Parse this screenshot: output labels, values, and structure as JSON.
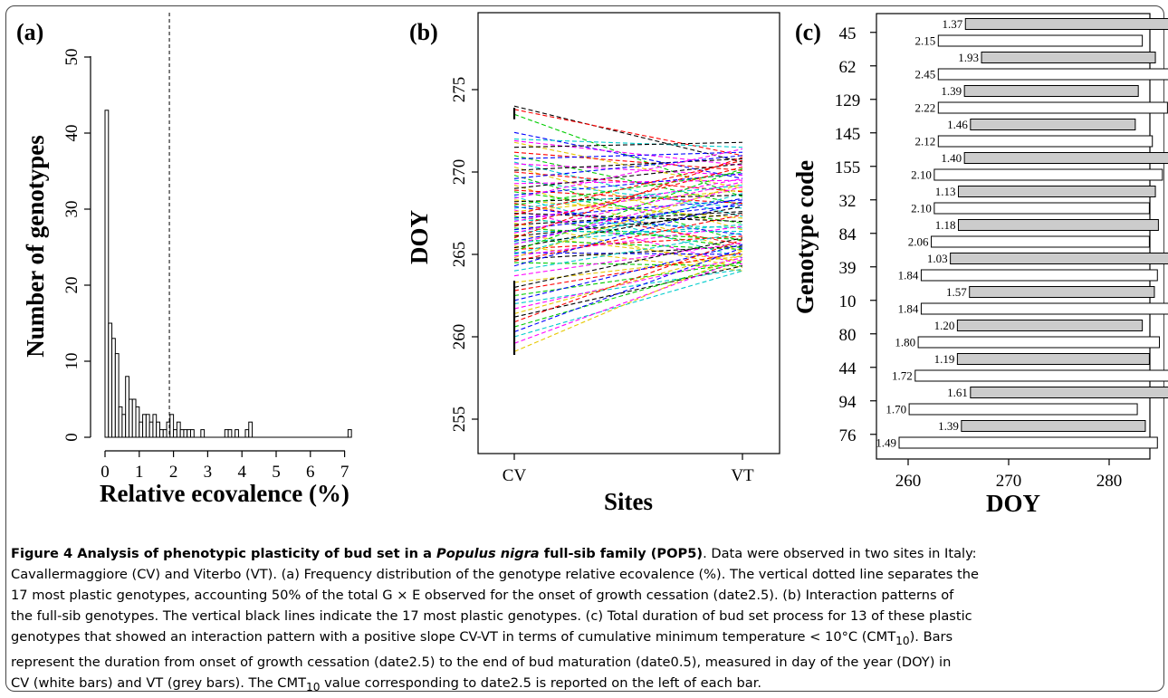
{
  "chart_data": [
    {
      "type": "bar",
      "panel": "(a)",
      "xlabel": "Relative ecovalence (%)",
      "ylabel": "Number of genotypes",
      "xlim": [
        -0.2,
        7.3
      ],
      "ylim": [
        0,
        50
      ],
      "xticks": [
        "0",
        "1",
        "2",
        "3",
        "4",
        "5",
        "6",
        "7"
      ],
      "yticks": [
        "0",
        "10",
        "20",
        "30",
        "40",
        "50"
      ],
      "bin_width": 0.1,
      "bins": [
        {
          "x": 0.0,
          "count": 43
        },
        {
          "x": 0.1,
          "count": 15
        },
        {
          "x": 0.2,
          "count": 13
        },
        {
          "x": 0.3,
          "count": 11
        },
        {
          "x": 0.4,
          "count": 4
        },
        {
          "x": 0.5,
          "count": 3
        },
        {
          "x": 0.6,
          "count": 8
        },
        {
          "x": 0.7,
          "count": 5
        },
        {
          "x": 0.8,
          "count": 5
        },
        {
          "x": 0.9,
          "count": 4
        },
        {
          "x": 1.0,
          "count": 2
        },
        {
          "x": 1.1,
          "count": 3
        },
        {
          "x": 1.2,
          "count": 3
        },
        {
          "x": 1.3,
          "count": 2
        },
        {
          "x": 1.4,
          "count": 3
        },
        {
          "x": 1.5,
          "count": 2
        },
        {
          "x": 1.6,
          "count": 1
        },
        {
          "x": 1.7,
          "count": 1
        },
        {
          "x": 1.8,
          "count": 2
        },
        {
          "x": 1.9,
          "count": 3
        },
        {
          "x": 2.0,
          "count": 1
        },
        {
          "x": 2.1,
          "count": 2
        },
        {
          "x": 2.2,
          "count": 1
        },
        {
          "x": 2.3,
          "count": 1
        },
        {
          "x": 2.4,
          "count": 1
        },
        {
          "x": 2.5,
          "count": 1
        },
        {
          "x": 2.8,
          "count": 1
        },
        {
          "x": 3.5,
          "count": 1
        },
        {
          "x": 3.6,
          "count": 1
        },
        {
          "x": 3.8,
          "count": 1
        },
        {
          "x": 4.1,
          "count": 1
        },
        {
          "x": 4.2,
          "count": 2
        },
        {
          "x": 7.1,
          "count": 1
        }
      ],
      "reference_line_x": 1.88
    },
    {
      "type": "line",
      "panel": "(b)",
      "xlabel": "Sites",
      "ylabel": "DOY",
      "categories": [
        "CV",
        "VT"
      ],
      "ylim": [
        254.5,
        275.5
      ],
      "yticks": [
        255,
        260,
        265,
        270,
        275
      ],
      "line_style": "dashed",
      "series_colors": [
        "#000000",
        "#ff0000",
        "#00cc00",
        "#0000ff",
        "#00cccc",
        "#ff00ff",
        "#e6c800"
      ],
      "series": [
        {
          "values": [
            274.0,
            270.6
          ]
        },
        {
          "values": [
            273.8,
            271.0
          ]
        },
        {
          "values": [
            273.5,
            268.5
          ]
        },
        {
          "values": [
            272.4,
            269.6
          ]
        },
        {
          "values": [
            272.0,
            271.5
          ]
        },
        {
          "values": [
            271.9,
            270.4
          ]
        },
        {
          "values": [
            271.8,
            269.0
          ]
        },
        {
          "values": [
            271.5,
            271.8
          ]
        },
        {
          "values": [
            271.2,
            270.1
          ]
        },
        {
          "values": [
            271.0,
            268.0
          ]
        },
        {
          "values": [
            270.8,
            271.2
          ]
        },
        {
          "values": [
            270.6,
            267.3
          ]
        },
        {
          "values": [
            270.5,
            269.8
          ]
        },
        {
          "values": [
            270.3,
            266.5
          ]
        },
        {
          "values": [
            270.1,
            270.8
          ]
        },
        {
          "values": [
            270.0,
            268.8
          ]
        },
        {
          "values": [
            269.8,
            265.8
          ]
        },
        {
          "values": [
            269.6,
            271.0
          ]
        },
        {
          "values": [
            269.5,
            267.8
          ]
        },
        {
          "values": [
            269.3,
            269.5
          ]
        },
        {
          "values": [
            269.2,
            265.2
          ]
        },
        {
          "values": [
            269.0,
            270.5
          ]
        },
        {
          "values": [
            268.9,
            268.1
          ]
        },
        {
          "values": [
            268.8,
            266.9
          ]
        },
        {
          "values": [
            268.6,
            269.9
          ]
        },
        {
          "values": [
            268.5,
            264.8
          ]
        },
        {
          "values": [
            268.4,
            271.4
          ]
        },
        {
          "values": [
            268.3,
            267.2
          ]
        },
        {
          "values": [
            268.2,
            268.6
          ]
        },
        {
          "values": [
            268.1,
            265.6
          ]
        },
        {
          "values": [
            268.0,
            270.0
          ]
        },
        {
          "values": [
            267.9,
            266.2
          ]
        },
        {
          "values": [
            267.8,
            269.2
          ]
        },
        {
          "values": [
            267.7,
            264.4
          ]
        },
        {
          "values": [
            267.6,
            268.9
          ]
        },
        {
          "values": [
            267.5,
            267.0
          ]
        },
        {
          "values": [
            267.4,
            270.7
          ]
        },
        {
          "values": [
            267.3,
            265.4
          ]
        },
        {
          "values": [
            267.2,
            268.3
          ]
        },
        {
          "values": [
            267.1,
            266.6
          ]
        },
        {
          "values": [
            267.0,
            269.6
          ]
        },
        {
          "values": [
            266.9,
            264.2
          ]
        },
        {
          "values": [
            266.8,
            267.6
          ]
        },
        {
          "values": [
            266.7,
            270.3
          ]
        },
        {
          "values": [
            266.6,
            265.9
          ]
        },
        {
          "values": [
            266.5,
            268.0
          ]
        },
        {
          "values": [
            266.4,
            266.4
          ]
        },
        {
          "values": [
            266.3,
            269.4
          ]
        },
        {
          "values": [
            266.2,
            264.6
          ]
        },
        {
          "values": [
            266.1,
            267.5
          ]
        },
        {
          "values": [
            266.0,
            270.9
          ]
        },
        {
          "values": [
            265.9,
            265.3
          ]
        },
        {
          "values": [
            265.8,
            268.4
          ]
        },
        {
          "values": [
            265.7,
            266.8
          ]
        },
        {
          "values": [
            265.6,
            269.1
          ]
        },
        {
          "values": [
            265.5,
            264.0
          ]
        },
        {
          "values": [
            265.4,
            267.9
          ]
        },
        {
          "values": [
            265.3,
            266.1
          ]
        },
        {
          "values": [
            265.2,
            270.2
          ]
        },
        {
          "values": [
            265.1,
            265.0
          ]
        },
        {
          "values": [
            265.0,
            268.7
          ]
        },
        {
          "values": [
            264.9,
            266.7
          ]
        },
        {
          "values": [
            264.8,
            269.3
          ]
        },
        {
          "values": [
            264.7,
            265.5
          ]
        },
        {
          "values": [
            264.6,
            267.4
          ]
        },
        {
          "values": [
            264.5,
            264.3
          ]
        },
        {
          "values": [
            264.3,
            268.2
          ]
        },
        {
          "values": [
            264.0,
            266.3
          ]
        },
        {
          "values": [
            263.7,
            265.7
          ]
        },
        {
          "values": [
            263.3,
            264.9
          ]
        },
        {
          "values": [
            263.0,
            266.0
          ]
        },
        {
          "values": [
            262.8,
            265.1
          ]
        },
        {
          "values": [
            262.5,
            264.5
          ]
        },
        {
          "values": [
            262.2,
            265.6
          ]
        },
        {
          "values": [
            262.0,
            264.1
          ]
        },
        {
          "values": [
            261.7,
            264.8
          ]
        },
        {
          "values": [
            261.4,
            265.2
          ]
        },
        {
          "values": [
            261.2,
            264.3
          ]
        },
        {
          "values": [
            260.9,
            265.9
          ]
        },
        {
          "values": [
            260.6,
            264.6
          ]
        },
        {
          "values": [
            260.3,
            265.4
          ]
        },
        {
          "values": [
            260.0,
            264.0
          ]
        },
        {
          "values": [
            259.6,
            264.7
          ]
        },
        {
          "values": [
            259.1,
            265.0
          ]
        }
      ],
      "plastic_markers": [
        [
          273.2,
          273.9
        ],
        [
          258.9,
          263.4
        ]
      ]
    },
    {
      "type": "bar",
      "panel": "(c)",
      "xlabel": "DOY",
      "ylabel": "Genotype code",
      "xlim": [
        257,
        290
      ],
      "xticks": [
        "260",
        "270",
        "280"
      ],
      "genotypes": [
        "45",
        "62",
        "129",
        "145",
        "155",
        "32",
        "84",
        "39",
        "10",
        "80",
        "44",
        "94",
        "76"
      ],
      "bars": [
        {
          "site": "VT",
          "start": 265.7,
          "end": 286.6,
          "cmt10": "1.37"
        },
        {
          "site": "CV",
          "start": 263.0,
          "end": 283.3,
          "cmt10": "2.15"
        },
        {
          "site": "VT",
          "start": 267.3,
          "end": 284.6,
          "cmt10": "1.93"
        },
        {
          "site": "CV",
          "start": 263.0,
          "end": 286.9,
          "cmt10": "2.45"
        },
        {
          "site": "VT",
          "start": 265.6,
          "end": 282.9,
          "cmt10": "1.39"
        },
        {
          "site": "CV",
          "start": 263.0,
          "end": 285.8,
          "cmt10": "2.22"
        },
        {
          "site": "VT",
          "start": 266.2,
          "end": 282.6,
          "cmt10": "1.46"
        },
        {
          "site": "CV",
          "start": 263.0,
          "end": 284.3,
          "cmt10": "2.12"
        },
        {
          "site": "VT",
          "start": 265.6,
          "end": 287.6,
          "cmt10": "1.40"
        },
        {
          "site": "CV",
          "start": 262.6,
          "end": 285.3,
          "cmt10": "2.10"
        },
        {
          "site": "VT",
          "start": 265.0,
          "end": 284.6,
          "cmt10": "1.13"
        },
        {
          "site": "CV",
          "start": 262.6,
          "end": 284.0,
          "cmt10": "2.10"
        },
        {
          "site": "VT",
          "start": 265.0,
          "end": 284.9,
          "cmt10": "1.18"
        },
        {
          "site": "CV",
          "start": 262.3,
          "end": 284.0,
          "cmt10": "2.06"
        },
        {
          "site": "VT",
          "start": 264.2,
          "end": 286.9,
          "cmt10": "1.03"
        },
        {
          "site": "CV",
          "start": 261.3,
          "end": 284.8,
          "cmt10": "1.84"
        },
        {
          "site": "VT",
          "start": 266.1,
          "end": 284.5,
          "cmt10": "1.57"
        },
        {
          "site": "CV",
          "start": 261.3,
          "end": 285.9,
          "cmt10": "1.84"
        },
        {
          "site": "VT",
          "start": 264.9,
          "end": 283.3,
          "cmt10": "1.20"
        },
        {
          "site": "CV",
          "start": 261.0,
          "end": 285.0,
          "cmt10": "1.80"
        },
        {
          "site": "VT",
          "start": 264.9,
          "end": 284.0,
          "cmt10": "1.19"
        },
        {
          "site": "CV",
          "start": 260.7,
          "end": 286.1,
          "cmt10": "1.72"
        },
        {
          "site": "VT",
          "start": 266.2,
          "end": 286.6,
          "cmt10": "1.61"
        },
        {
          "site": "CV",
          "start": 260.1,
          "end": 282.8,
          "cmt10": "1.70"
        },
        {
          "site": "VT",
          "start": 265.3,
          "end": 283.6,
          "cmt10": "1.39"
        },
        {
          "site": "CV",
          "start": 259.1,
          "end": 284.8,
          "cmt10": "1.49"
        }
      ],
      "colors": {
        "CV": "#ffffff",
        "VT": "#cccccc"
      }
    }
  ],
  "caption": {
    "title_before": "Figure 4 Analysis of phenotypic plasticity of bud set in a ",
    "title_species": "Populus nigra",
    "title_after": " full-sib family (POP5)",
    "line1_rest": ". Data were observed in two sites in Italy:",
    "line2": "Cavallermaggiore (CV) and Viterbo (VT). (a) Frequency distribution of the genotype relative ecovalence (%). The vertical dotted line separates the",
    "line3": "17 most plastic genotypes, accounting 50% of the total G × E observed for the onset of growth cessation (date2.5). (b) Interaction patterns of",
    "line4": "the full-sib genotypes. The vertical black lines indicate the 17 most plastic genotypes. (c) Total duration of bud set process for 13 of these plastic",
    "line5_a": "genotypes that showed an interaction pattern with a positive slope CV-VT in terms of cumulative minimum temperature < 10°C (CMT",
    "line5_sub": "10",
    "line5_b": "). Bars",
    "line6": "represent the duration from onset of growth cessation (date2.5) to the end of bud maturation (date0.5), measured in day of the year (DOY) in",
    "line7_a": "CV (white bars) and VT (grey bars). The CMT",
    "line7_sub": "10",
    "line7_b": " value corresponding to date2.5 is reported on the left of each bar."
  }
}
